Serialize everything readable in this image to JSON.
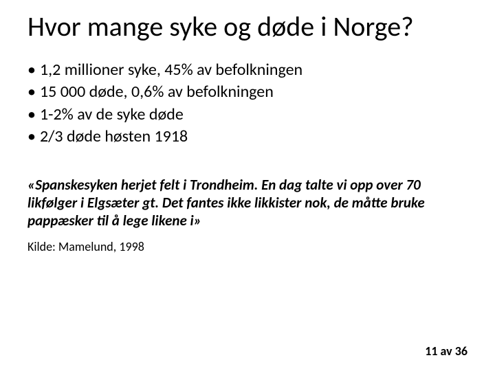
{
  "slide": {
    "title": "Hvor mange syke og døde i Norge?",
    "bullets": [
      "1,2 millioner syke, 45% av befolkningen",
      "15 000 døde, 0,6% av befolkningen",
      "1-2% av de syke døde",
      "2/3 døde høsten 1918"
    ],
    "quote": "«Spanskesyken herjet felt i Trondheim. En dag talte vi opp over 70 likfølger i Elgsæter gt. Det fantes ikke likkister nok, de måtte bruke pappæsker til å lege likene i»",
    "source": "Kilde: Mamelund, 1998",
    "page_current": 11,
    "page_total": 36,
    "page_sep": " av "
  },
  "style": {
    "background_color": "#ffffff",
    "text_color": "#000000",
    "title_fontsize": 40,
    "body_fontsize": 24,
    "quote_fontsize": 21,
    "source_fontsize": 18,
    "pager_fontsize": 18
  }
}
